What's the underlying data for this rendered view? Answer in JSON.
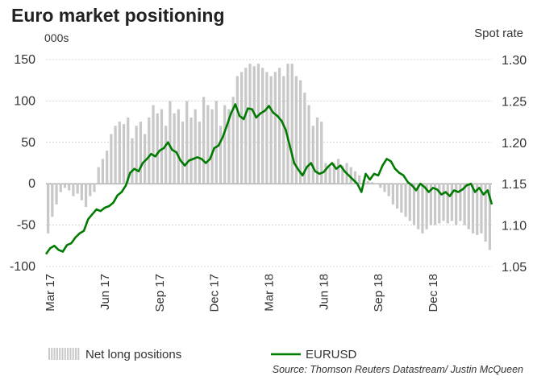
{
  "chart_data": {
    "type": "bar+line",
    "title": "Euro market positioning",
    "ylabel_left": "000s",
    "ylabel_right": "Spot rate",
    "left_axis": {
      "ylim": [
        -100,
        150
      ],
      "ticks": [
        150,
        100,
        50,
        0,
        -50,
        -100
      ]
    },
    "right_axis": {
      "ylim": [
        1.05,
        1.3
      ],
      "ticks": [
        "1.30",
        "1.25",
        "1.20",
        "1.15",
        "1.10",
        "1.05"
      ]
    },
    "x_tick_labels": [
      "Mar 17",
      "Jun 17",
      "Sep 17",
      "Dec 17",
      "Mar 18",
      "Jun 18",
      "Sep 18",
      "Dec 18"
    ],
    "x_tick_positions": [
      1,
      14,
      27,
      40,
      53,
      66,
      79,
      92
    ],
    "x_range": [
      0,
      106
    ],
    "series": [
      {
        "name": "Net long positions",
        "kind": "bar",
        "values": [
          -60,
          -40,
          -25,
          -10,
          -5,
          -8,
          -15,
          -12,
          -20,
          -28,
          -15,
          -10,
          20,
          30,
          40,
          60,
          70,
          75,
          72,
          80,
          55,
          70,
          75,
          60,
          80,
          95,
          85,
          90,
          70,
          100,
          85,
          90,
          75,
          100,
          80,
          90,
          75,
          105,
          95,
          90,
          100,
          70,
          95,
          90,
          105,
          130,
          135,
          140,
          145,
          142,
          145,
          140,
          135,
          130,
          135,
          140,
          130,
          145,
          145,
          130,
          125,
          110,
          95,
          70,
          80,
          75,
          25,
          20,
          25,
          30,
          22,
          25,
          20,
          15,
          10,
          5,
          3,
          2,
          0,
          -5,
          -10,
          -15,
          -25,
          -30,
          -35,
          -40,
          -45,
          -50,
          -55,
          -60,
          -55,
          -50,
          -50,
          -48,
          -45,
          -48,
          -45,
          -50,
          -45,
          -50,
          -55,
          -60,
          -62,
          -60,
          -70,
          -80
        ]
      },
      {
        "name": "EURUSD",
        "kind": "line",
        "values": [
          1.065,
          1.072,
          1.075,
          1.07,
          1.068,
          1.076,
          1.078,
          1.085,
          1.09,
          1.093,
          1.107,
          1.113,
          1.119,
          1.117,
          1.121,
          1.123,
          1.127,
          1.136,
          1.14,
          1.148,
          1.163,
          1.168,
          1.165,
          1.175,
          1.18,
          1.186,
          1.183,
          1.19,
          1.193,
          1.2,
          1.191,
          1.188,
          1.178,
          1.172,
          1.178,
          1.18,
          1.182,
          1.18,
          1.175,
          1.18,
          1.193,
          1.196,
          1.206,
          1.22,
          1.235,
          1.246,
          1.232,
          1.228,
          1.241,
          1.24,
          1.23,
          1.235,
          1.238,
          1.244,
          1.236,
          1.232,
          1.226,
          1.215,
          1.195,
          1.175,
          1.167,
          1.16,
          1.17,
          1.175,
          1.165,
          1.162,
          1.164,
          1.17,
          1.175,
          1.168,
          1.172,
          1.165,
          1.16,
          1.155,
          1.15,
          1.14,
          1.162,
          1.155,
          1.162,
          1.16,
          1.172,
          1.18,
          1.177,
          1.168,
          1.163,
          1.16,
          1.152,
          1.148,
          1.142,
          1.15,
          1.146,
          1.14,
          1.145,
          1.143,
          1.137,
          1.14,
          1.135,
          1.142,
          1.14,
          1.143,
          1.148,
          1.15,
          1.14,
          1.145,
          1.137,
          1.142,
          1.125
        ]
      }
    ],
    "legend": [
      "Net long positions",
      "EURUSD"
    ],
    "source": "Source: Thomson Reuters Datastream/ Justin McQueen",
    "colors": {
      "bars": "#c8c8c8",
      "line": "#007a00",
      "grid": "#cccccc",
      "zero": "#888888"
    }
  }
}
